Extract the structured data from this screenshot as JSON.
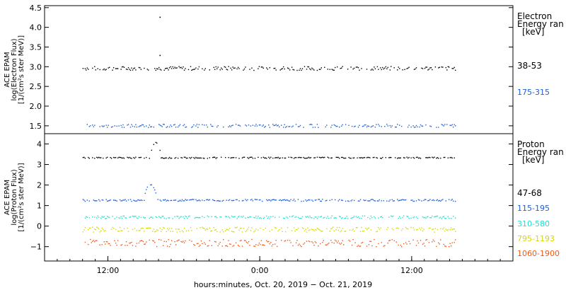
{
  "chart_data": [
    {
      "type": "scatter",
      "ylabel": [
        "ACE EPAM",
        "log(Electron Flux)",
        "[1/(cm²s ster MeV)]"
      ],
      "yticks": [
        "1.5",
        "2.0",
        "2.5",
        "3.0",
        "3.5",
        "4.0",
        "4.5"
      ],
      "ylim": [
        1.3,
        4.55
      ],
      "x_time_range": [
        "2019-10-20 07:00",
        "2019-10-21 20:00"
      ],
      "legend_title": [
        "Electron",
        "Energy ran",
        "[keV]"
      ],
      "grid": false,
      "series": [
        {
          "name": "38-53",
          "color": "#000000",
          "mean": 2.97,
          "spread": 0.05,
          "outliers": [
            {
              "x": "2019-10-20 16:05",
              "y": 4.27
            },
            {
              "x": "2019-10-20 16:05",
              "y": 3.3
            }
          ]
        },
        {
          "name": "175-315",
          "color": "#1f5fd6",
          "mean": 1.51,
          "spread": 0.04,
          "outliers": []
        }
      ]
    },
    {
      "type": "scatter",
      "ylabel": [
        "ACE EPAM",
        "log(Proton Flux)",
        "[1/(cm²s ster MeV)]"
      ],
      "yticks": [
        "−1",
        "0",
        "1",
        "2",
        "3",
        "4"
      ],
      "ylim": [
        -1.7,
        4.5
      ],
      "x_time_range": [
        "2019-10-20 07:00",
        "2019-10-21 20:00"
      ],
      "xticks": [
        "12:00",
        "0:00",
        "12:00"
      ],
      "xlabel": "hours:minutes, Oct. 20, 2019 − Oct. 21, 2019",
      "legend_title": [
        "Proton",
        "Energy ran",
        "[keV]"
      ],
      "grid": false,
      "series": [
        {
          "name": "47-68",
          "color": "#000000",
          "mean": 3.35,
          "spread": 0.03,
          "event": {
            "start": "2019-10-20 15:20",
            "end": "2019-10-20 16:10",
            "peak": 4.1
          }
        },
        {
          "name": "115-195",
          "color": "#1f5fd6",
          "mean": 1.28,
          "spread": 0.05,
          "event": {
            "start": "2019-10-20 14:50",
            "end": "2019-10-20 15:50",
            "peak": 2.05
          }
        },
        {
          "name": "310-580",
          "color": "#1fe0d0",
          "mean": 0.45,
          "spread": 0.07
        },
        {
          "name": "795-1193",
          "color": "#d8d800",
          "mean": -0.15,
          "spread": 0.12
        },
        {
          "name": "1060-1900",
          "color": "#f05a14",
          "mean": -0.8,
          "spread": 0.18
        }
      ]
    }
  ]
}
